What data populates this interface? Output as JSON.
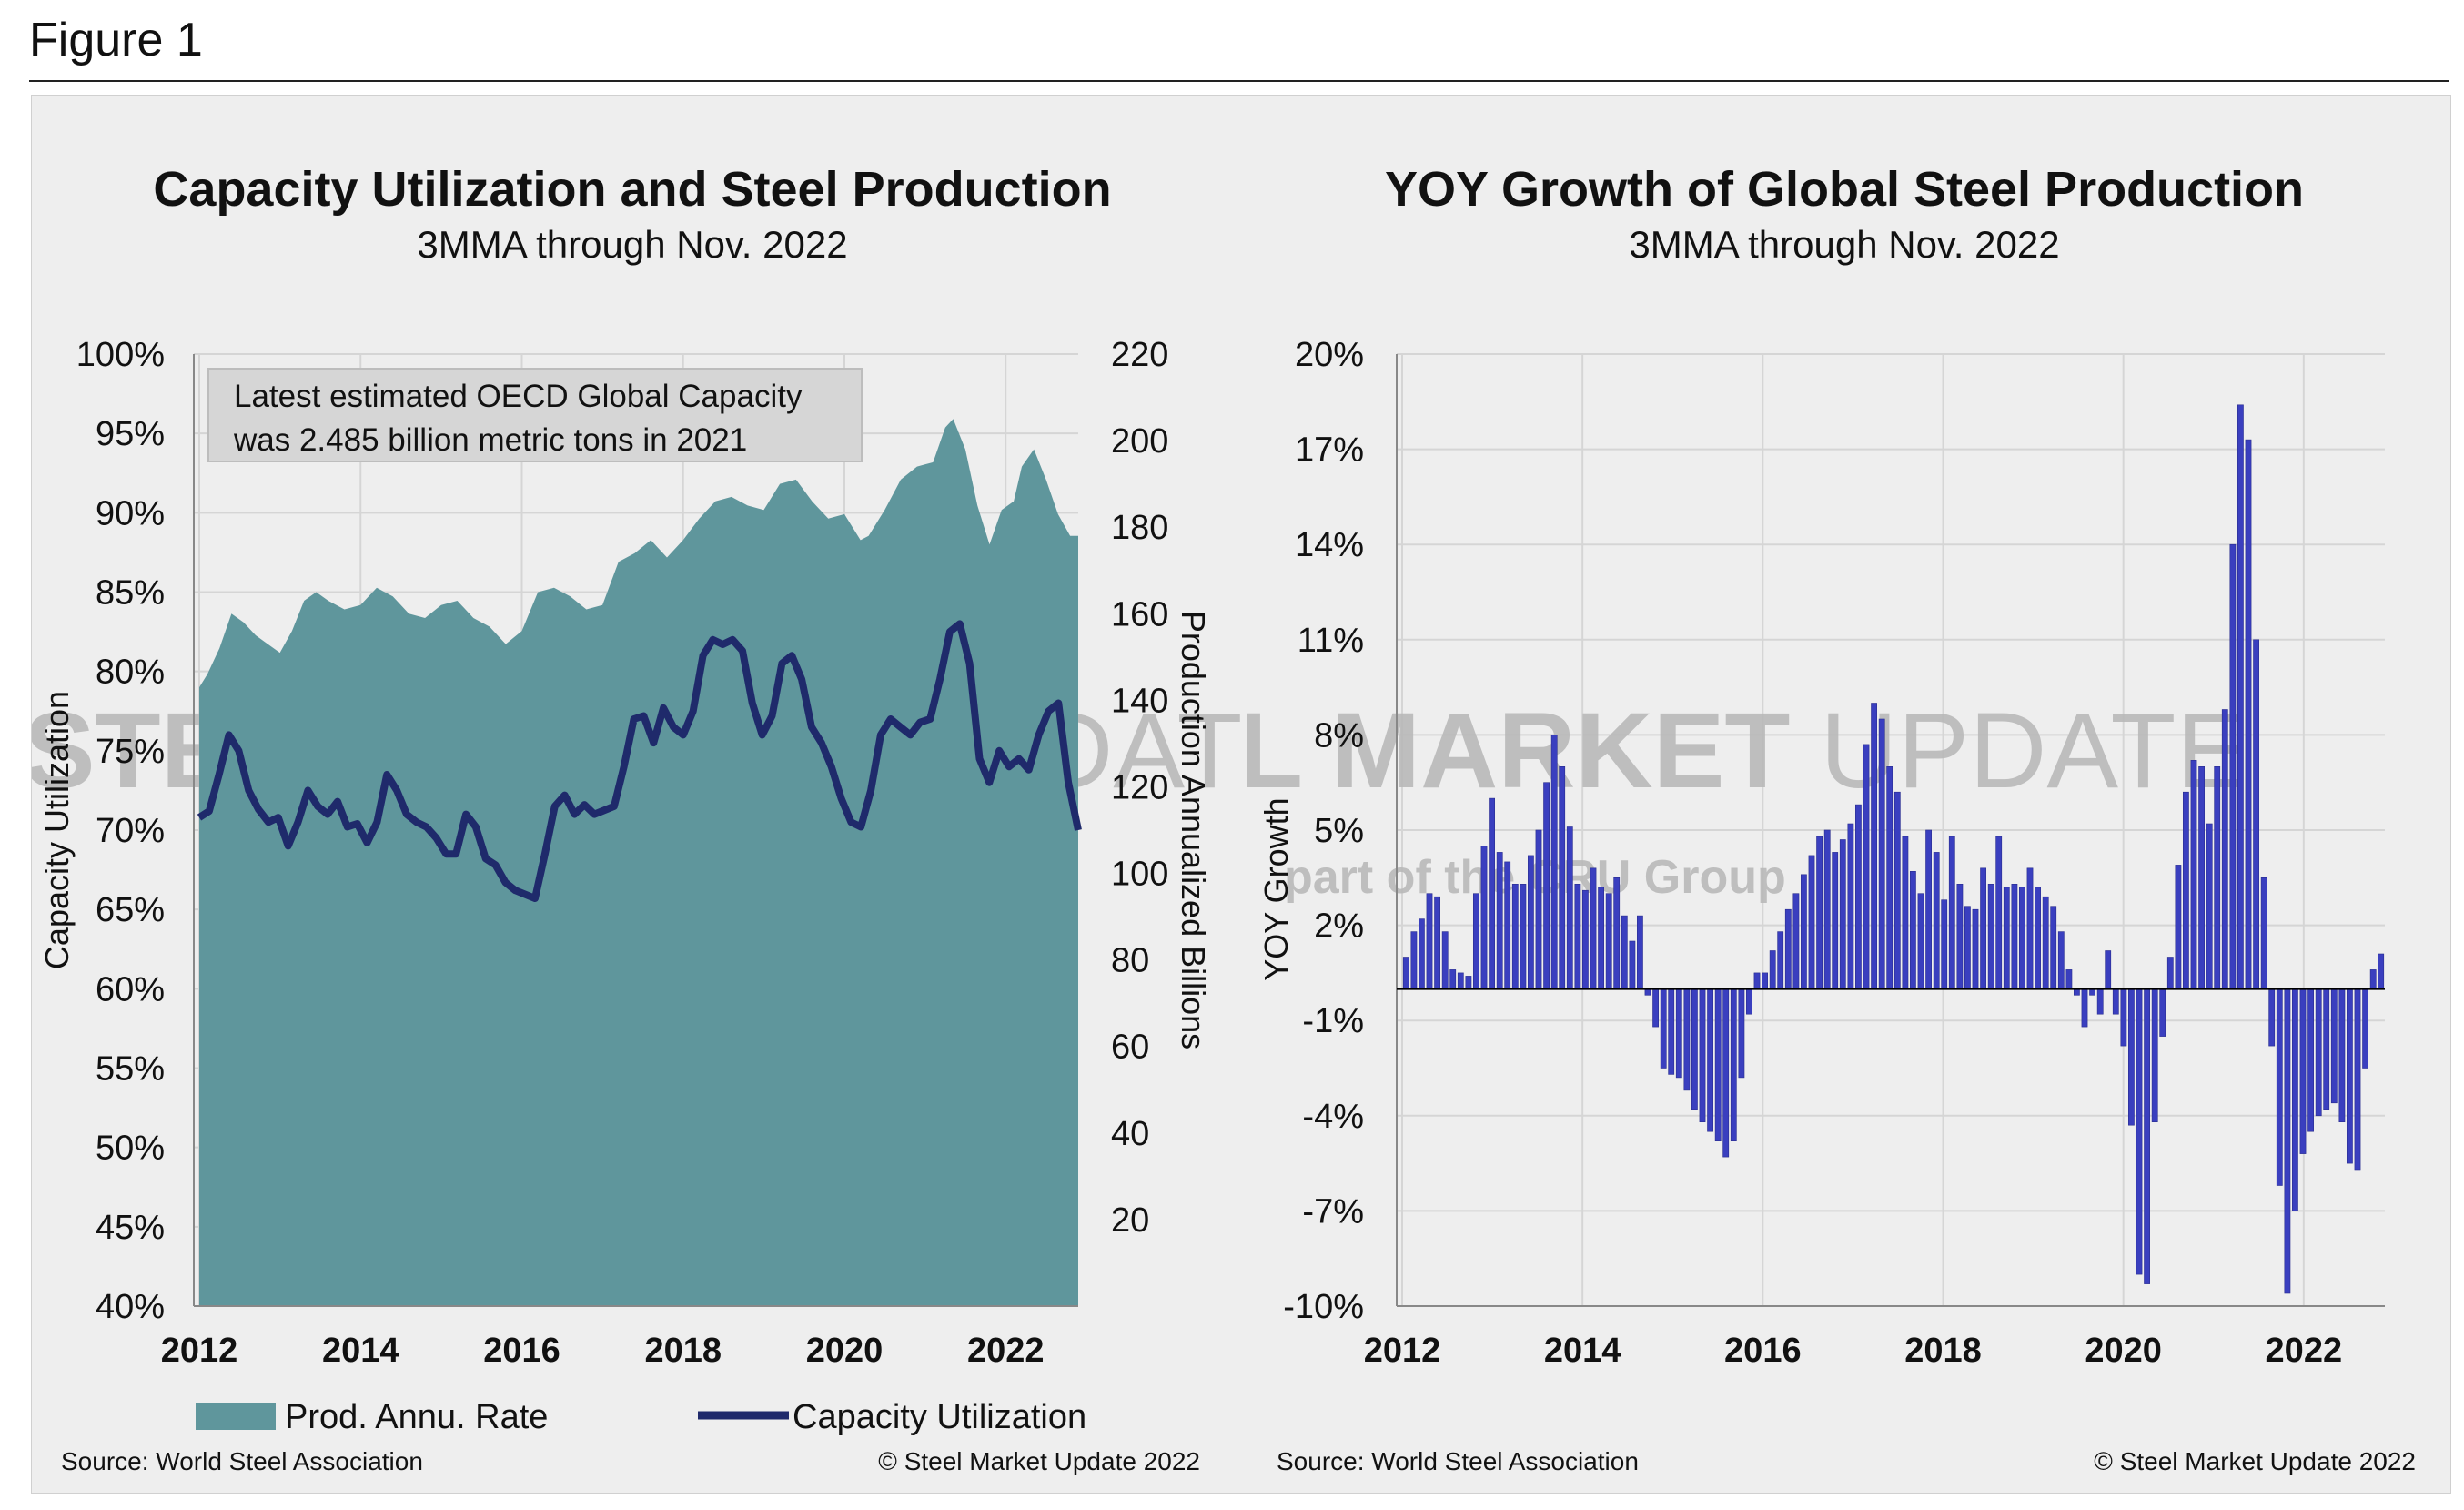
{
  "figure_title": "Figure 1",
  "watermark": {
    "brand_bold": "STEEL MARKET",
    "brand_light": "UPDATE",
    "tagline": "part of the CRU Group"
  },
  "chart_data": [
    {
      "type": "area",
      "title": "Capacity Utilization and Steel Production",
      "subtitle": "3MMA through Nov. 2022",
      "xlabel": "",
      "ylabel": "Capacity Utilization",
      "y2label": "Production Annualized Billions",
      "xlim": [
        2012,
        2022.9
      ],
      "x_ticks": [
        "2012",
        "2014",
        "2016",
        "2018",
        "2020",
        "2022"
      ],
      "ylim": [
        40,
        100
      ],
      "y_ticks": [
        "40%",
        "45%",
        "50%",
        "55%",
        "60%",
        "65%",
        "70%",
        "75%",
        "80%",
        "85%",
        "90%",
        "95%",
        "100%"
      ],
      "y2lim": [
        0,
        220
      ],
      "y2_ticks": [
        "20",
        "40",
        "60",
        "80",
        "100",
        "120",
        "140",
        "160",
        "180",
        "200",
        "220"
      ],
      "legend_position": "bottom",
      "note": {
        "line1": "Latest estimated OECD Global Capacity",
        "line2": "was 2.485 billion metric tons in 2021"
      },
      "series": [
        {
          "name": "Prod. Annu. Rate",
          "axis": "right",
          "color": "#5f969c",
          "points": [
            [
              2012.0,
              143
            ],
            [
              2012.1,
              146
            ],
            [
              2012.25,
              152
            ],
            [
              2012.4,
              160
            ],
            [
              2012.55,
              158
            ],
            [
              2012.7,
              155
            ],
            [
              2012.85,
              153
            ],
            [
              2013.0,
              151
            ],
            [
              2013.15,
              156
            ],
            [
              2013.3,
              163
            ],
            [
              2013.45,
              165
            ],
            [
              2013.6,
              163
            ],
            [
              2013.8,
              161
            ],
            [
              2014.0,
              162
            ],
            [
              2014.2,
              166
            ],
            [
              2014.4,
              164
            ],
            [
              2014.6,
              160
            ],
            [
              2014.8,
              159
            ],
            [
              2015.0,
              162
            ],
            [
              2015.2,
              163
            ],
            [
              2015.4,
              159
            ],
            [
              2015.6,
              157
            ],
            [
              2015.8,
              153
            ],
            [
              2016.0,
              156
            ],
            [
              2016.2,
              165
            ],
            [
              2016.4,
              166
            ],
            [
              2016.6,
              164
            ],
            [
              2016.8,
              161
            ],
            [
              2017.0,
              162
            ],
            [
              2017.2,
              172
            ],
            [
              2017.4,
              174
            ],
            [
              2017.6,
              177
            ],
            [
              2017.8,
              173
            ],
            [
              2018.0,
              177
            ],
            [
              2018.2,
              182
            ],
            [
              2018.4,
              186
            ],
            [
              2018.6,
              187
            ],
            [
              2018.8,
              185
            ],
            [
              2019.0,
              184
            ],
            [
              2019.2,
              190
            ],
            [
              2019.4,
              191
            ],
            [
              2019.6,
              186
            ],
            [
              2019.8,
              182
            ],
            [
              2020.0,
              183
            ],
            [
              2020.2,
              177
            ],
            [
              2020.3,
              178
            ],
            [
              2020.5,
              184
            ],
            [
              2020.7,
              191
            ],
            [
              2020.9,
              194
            ],
            [
              2021.1,
              195
            ],
            [
              2021.25,
              203
            ],
            [
              2021.35,
              205
            ],
            [
              2021.5,
              198
            ],
            [
              2021.65,
              185
            ],
            [
              2021.8,
              176
            ],
            [
              2021.95,
              184
            ],
            [
              2022.1,
              186
            ],
            [
              2022.2,
              194
            ],
            [
              2022.35,
              198
            ],
            [
              2022.5,
              191
            ],
            [
              2022.65,
              183
            ],
            [
              2022.8,
              178
            ],
            [
              2022.9,
              178
            ]
          ]
        },
        {
          "name": "Capacity Utilization",
          "axis": "left",
          "color": "#1f2a6b",
          "points": [
            [
              2012.0,
              70.8
            ],
            [
              2012.1,
              71.2
            ],
            [
              2012.2,
              73.5
            ],
            [
              2012.3,
              76.0
            ],
            [
              2012.4,
              75.0
            ],
            [
              2012.5,
              72.5
            ],
            [
              2012.6,
              71.3
            ],
            [
              2012.7,
              70.5
            ],
            [
              2012.8,
              70.8
            ],
            [
              2012.9,
              69.0
            ],
            [
              2013.0,
              70.5
            ],
            [
              2013.1,
              72.5
            ],
            [
              2013.2,
              71.5
            ],
            [
              2013.3,
              71.0
            ],
            [
              2013.4,
              71.8
            ],
            [
              2013.5,
              70.2
            ],
            [
              2013.6,
              70.4
            ],
            [
              2013.7,
              69.2
            ],
            [
              2013.8,
              70.5
            ],
            [
              2013.9,
              73.5
            ],
            [
              2014.0,
              72.5
            ],
            [
              2014.1,
              71.0
            ],
            [
              2014.2,
              70.5
            ],
            [
              2014.3,
              70.2
            ],
            [
              2014.4,
              69.5
            ],
            [
              2014.5,
              68.5
            ],
            [
              2014.6,
              68.5
            ],
            [
              2014.7,
              71.0
            ],
            [
              2014.8,
              70.2
            ],
            [
              2014.9,
              68.2
            ],
            [
              2015.0,
              67.8
            ],
            [
              2015.1,
              66.7
            ],
            [
              2015.2,
              66.2
            ],
            [
              2015.4,
              65.7
            ],
            [
              2015.5,
              68.5
            ],
            [
              2015.6,
              71.5
            ],
            [
              2015.7,
              72.2
            ],
            [
              2015.8,
              71.0
            ],
            [
              2015.9,
              71.6
            ],
            [
              2016.0,
              71.0
            ],
            [
              2016.2,
              71.5
            ],
            [
              2016.3,
              74.0
            ],
            [
              2016.4,
              77.0
            ],
            [
              2016.5,
              77.2
            ],
            [
              2016.6,
              75.5
            ],
            [
              2016.7,
              77.7
            ],
            [
              2016.8,
              76.5
            ],
            [
              2016.9,
              76.0
            ],
            [
              2017.0,
              77.5
            ],
            [
              2017.1,
              81.0
            ],
            [
              2017.2,
              82.0
            ],
            [
              2017.3,
              81.7
            ],
            [
              2017.4,
              82.0
            ],
            [
              2017.5,
              81.3
            ],
            [
              2017.6,
              78.0
            ],
            [
              2017.7,
              76.0
            ],
            [
              2017.8,
              77.2
            ],
            [
              2017.9,
              80.5
            ],
            [
              2018.0,
              81.0
            ],
            [
              2018.1,
              79.5
            ],
            [
              2018.2,
              76.5
            ],
            [
              2018.3,
              75.5
            ],
            [
              2018.4,
              74.0
            ],
            [
              2018.5,
              72.0
            ],
            [
              2018.6,
              70.5
            ],
            [
              2018.7,
              70.2
            ],
            [
              2018.8,
              72.5
            ],
            [
              2018.9,
              76.0
            ],
            [
              2019.0,
              77.0
            ],
            [
              2019.1,
              76.5
            ],
            [
              2019.2,
              76.0
            ],
            [
              2019.3,
              76.8
            ],
            [
              2019.4,
              77.0
            ],
            [
              2019.5,
              79.5
            ],
            [
              2019.6,
              82.5
            ],
            [
              2019.7,
              83.0
            ],
            [
              2019.8,
              80.5
            ],
            [
              2019.9,
              74.5
            ],
            [
              2020.0,
              73.0
            ],
            [
              2020.1,
              75.0
            ],
            [
              2020.2,
              74.0
            ],
            [
              2020.3,
              74.5
            ],
            [
              2020.4,
              73.8
            ],
            [
              2020.5,
              76.0
            ],
            [
              2020.6,
              77.5
            ],
            [
              2020.7,
              78.0
            ],
            [
              2020.8,
              73.0
            ],
            [
              2020.9,
              70.0
            ]
          ]
        }
      ]
    },
    {
      "type": "bar",
      "title": "YOY Growth of Global Steel Production",
      "subtitle": "3MMA through Nov. 2022",
      "xlabel": "",
      "ylabel": "YOY Growth",
      "xlim": [
        2012,
        2022.9
      ],
      "x_ticks": [
        "2012",
        "2014",
        "2016",
        "2018",
        "2020",
        "2022"
      ],
      "ylim": [
        -10,
        20
      ],
      "y_ticks": [
        "-10%",
        "-7%",
        "-4%",
        "-1%",
        "2%",
        "5%",
        "8%",
        "11%",
        "14%",
        "17%",
        "20%"
      ],
      "color": "#3a3fbf",
      "start": "2012-01",
      "values": [
        1.0,
        1.8,
        2.2,
        3.0,
        2.9,
        1.8,
        0.6,
        0.5,
        0.4,
        3.0,
        4.5,
        6.0,
        4.3,
        4.0,
        3.3,
        3.3,
        4.2,
        5.0,
        6.5,
        8.0,
        7.0,
        5.1,
        3.3,
        3.1,
        3.8,
        3.2,
        3.0,
        3.5,
        2.3,
        1.5,
        2.3,
        -0.2,
        -1.2,
        -2.5,
        -2.7,
        -2.8,
        -3.2,
        -3.8,
        -4.2,
        -4.5,
        -4.8,
        -5.3,
        -4.8,
        -2.8,
        -0.8,
        0.5,
        0.5,
        1.2,
        1.8,
        2.5,
        3.0,
        3.6,
        4.2,
        4.8,
        5.0,
        4.3,
        4.7,
        5.2,
        5.8,
        7.7,
        9.0,
        8.5,
        7.0,
        6.2,
        4.8,
        3.7,
        3.0,
        5.0,
        4.3,
        2.8,
        4.8,
        3.3,
        2.6,
        2.5,
        3.8,
        3.3,
        4.8,
        3.2,
        3.3,
        3.2,
        3.8,
        3.2,
        2.9,
        2.6,
        1.8,
        0.6,
        -0.2,
        -1.2,
        -0.2,
        -0.8,
        1.2,
        -0.8,
        -1.8,
        -4.3,
        -9.0,
        -9.3,
        -4.2,
        -1.5,
        1.0,
        3.9,
        6.2,
        7.2,
        7.0,
        5.2,
        7.0,
        8.8,
        14.0,
        18.4,
        17.3,
        11.0,
        3.5,
        -1.8,
        -6.2,
        -9.6,
        -7.0,
        -5.2,
        -4.5,
        -4.0,
        -3.8,
        -3.6,
        -4.2,
        -5.5,
        -5.7,
        -2.5,
        0.6,
        1.1
      ]
    }
  ],
  "legend": {
    "area_label": "Prod. Annu. Rate",
    "line_label": "Capacity Utilization"
  },
  "footer": {
    "left_source": "Source: World Steel Association",
    "left_copyright": "© Steel Market Update 2022",
    "right_source": "Source: World Steel Association",
    "right_copyright": "© Steel Market Update 2022"
  },
  "colors": {
    "panel_bg": "#eeeeee",
    "area": "#5f969c",
    "line": "#1f2a6b",
    "bar": "#3a3fbf",
    "grid": "#d5d5d5"
  }
}
